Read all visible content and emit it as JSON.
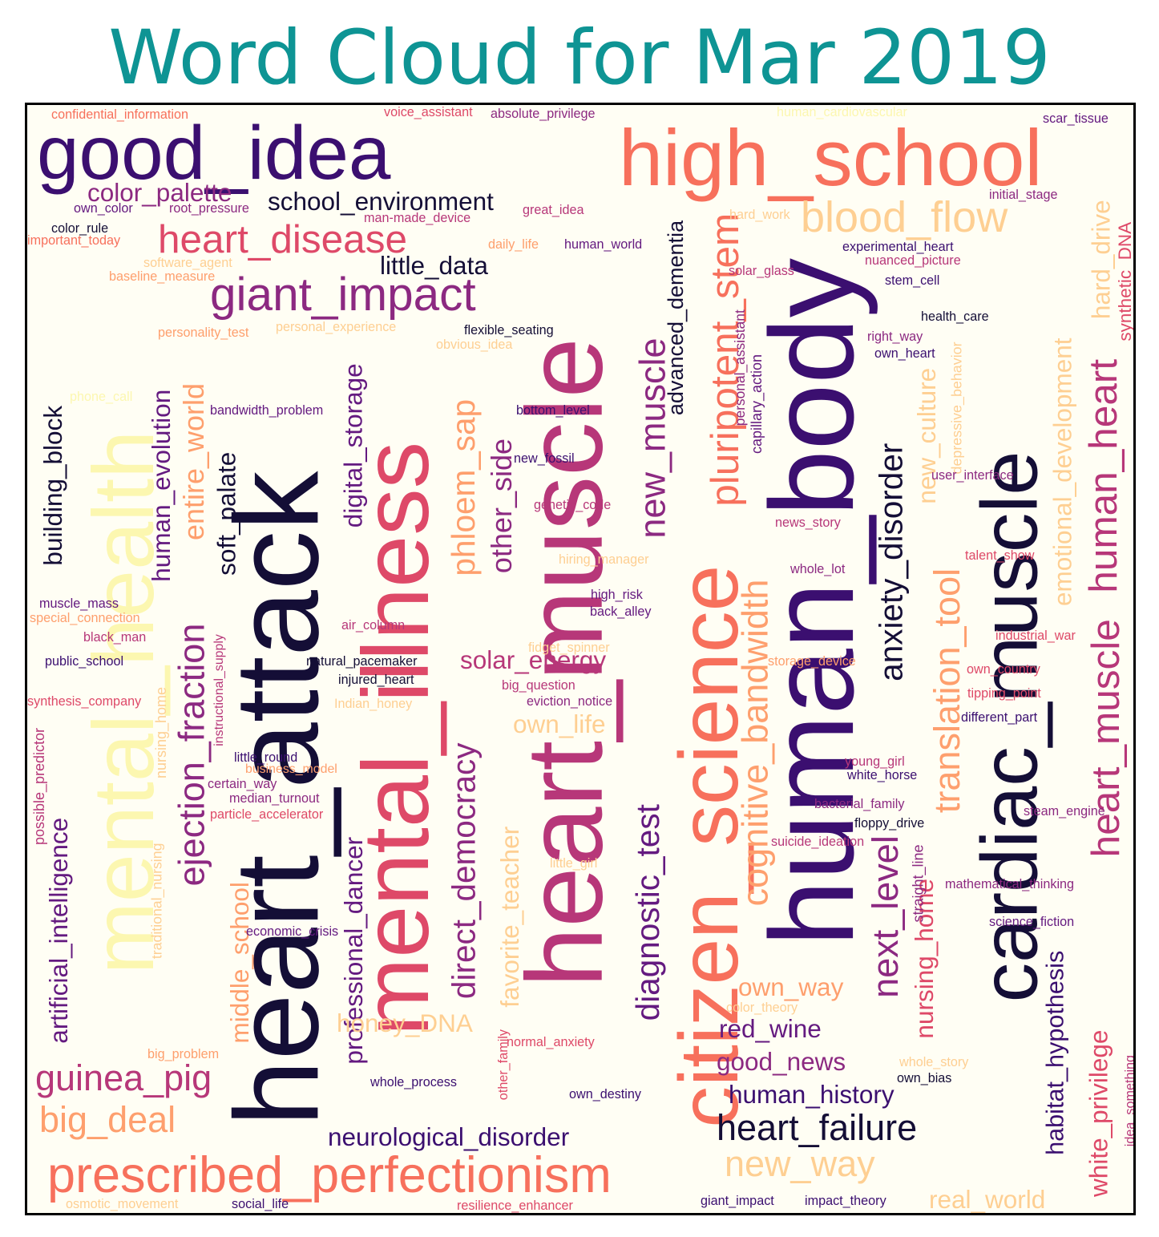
{
  "title": "Word Cloud for Mar 2019",
  "palette": {
    "title": "#0e9494",
    "c0": "#140e36",
    "c1": "#3b0f70",
    "c2": "#641a80",
    "c3": "#8c2981",
    "c4": "#b73779",
    "c5": "#de4968",
    "c6": "#f7705c",
    "c7": "#fe9f6d",
    "c8": "#fecf92",
    "c9": "#fcf7b0"
  },
  "words": [
    {
      "text": "good_idea",
      "color": "#3b0f70"
    },
    {
      "text": "high_school",
      "color": "#f7705c"
    },
    {
      "text": "heart_muscle",
      "color": "#b73779"
    },
    {
      "text": "cardiac_muscle",
      "color": "#140e36"
    },
    {
      "text": "human_body",
      "color": "#3b0f70"
    },
    {
      "text": "heart_attack",
      "color": "#140e36"
    },
    {
      "text": "mental_health",
      "color": "#fcf7b0"
    },
    {
      "text": "mental_illness",
      "color": "#de4968"
    },
    {
      "text": "citizen_science",
      "color": "#f7705c"
    },
    {
      "text": "prescribed_perfectionism",
      "color": "#f7705c"
    },
    {
      "text": "heart_disease",
      "color": "#de4968"
    },
    {
      "text": "giant_impact",
      "color": "#8c2981"
    },
    {
      "text": "blood_flow",
      "color": "#fecf92"
    },
    {
      "text": "human_heart",
      "color": "#b73779"
    },
    {
      "text": "heart_muscle",
      "color": "#b73779"
    },
    {
      "text": "anxiety_disorder",
      "color": "#140e36"
    },
    {
      "text": "cognitive_bandwidth",
      "color": "#fe9f6d"
    },
    {
      "text": "pluripotent_stem",
      "color": "#f7705c"
    },
    {
      "text": "direct_democracy",
      "color": "#8c2981"
    },
    {
      "text": "diagnostic_test",
      "color": "#641a80"
    },
    {
      "text": "ejection_fraction",
      "color": "#8c2981"
    },
    {
      "text": "translation_tool",
      "color": "#fe9f6d"
    },
    {
      "text": "phloem_sap",
      "color": "#fe9f6d"
    },
    {
      "text": "new_muscle",
      "color": "#8c2981"
    },
    {
      "text": "next_level",
      "color": "#8c2981"
    },
    {
      "text": "heart_failure",
      "color": "#140e36"
    },
    {
      "text": "new_way",
      "color": "#fecf92"
    },
    {
      "text": "guinea_pig",
      "color": "#b73779"
    },
    {
      "text": "big_deal",
      "color": "#fe9f6d"
    },
    {
      "text": "entire_world",
      "color": "#fe9f6d"
    },
    {
      "text": "other_side",
      "color": "#8c2981"
    },
    {
      "text": "color_palette",
      "color": "#8c2981"
    },
    {
      "text": "school_environment",
      "color": "#140e36"
    },
    {
      "text": "little_data",
      "color": "#140e36"
    },
    {
      "text": "advanced_dementia",
      "color": "#140e36"
    },
    {
      "text": "solar_energy",
      "color": "#b73779"
    },
    {
      "text": "own_life",
      "color": "#fecf92"
    },
    {
      "text": "human_evolution",
      "color": "#641a80"
    },
    {
      "text": "soft_palate",
      "color": "#140e36"
    },
    {
      "text": "digital_storage",
      "color": "#641a80"
    },
    {
      "text": "building_block",
      "color": "#140e36"
    },
    {
      "text": "artificial_intelligence",
      "color": "#641a80"
    },
    {
      "text": "middle_school",
      "color": "#fe9f6d"
    },
    {
      "text": "professional_dancer",
      "color": "#641a80"
    },
    {
      "text": "favorite_teacher",
      "color": "#fecf92"
    },
    {
      "text": "honey_DNA",
      "color": "#fecf92"
    },
    {
      "text": "neurological_disorder",
      "color": "#3b0f70"
    },
    {
      "text": "own_way",
      "color": "#fe9f6d"
    },
    {
      "text": "red_wine",
      "color": "#641a80"
    },
    {
      "text": "good_news",
      "color": "#8c2981"
    },
    {
      "text": "human_history",
      "color": "#3b0f70"
    },
    {
      "text": "nursing_home",
      "color": "#de4968"
    },
    {
      "text": "habitat_hypothesis",
      "color": "#3b0f70"
    },
    {
      "text": "white_privilege",
      "color": "#de4968"
    },
    {
      "text": "emotional_development",
      "color": "#fecf92"
    },
    {
      "text": "new_culture",
      "color": "#fecf92"
    },
    {
      "text": "hard_drive",
      "color": "#fecf92"
    },
    {
      "text": "real_world",
      "color": "#fecf92"
    },
    {
      "text": "confidential_information",
      "color": "#f7705c"
    },
    {
      "text": "voice_assistant",
      "color": "#de4968"
    },
    {
      "text": "absolute_privilege",
      "color": "#8c2981"
    },
    {
      "text": "human_cardiovascular",
      "color": "#fcf7b0"
    },
    {
      "text": "scar_tissue",
      "color": "#641a80"
    },
    {
      "text": "own_color",
      "color": "#641a80"
    },
    {
      "text": "root_pressure",
      "color": "#8c2981"
    },
    {
      "text": "color_rule",
      "color": "#140e36"
    },
    {
      "text": "important_today",
      "color": "#f7705c"
    },
    {
      "text": "software_agent",
      "color": "#fecf92"
    },
    {
      "text": "baseline_measure",
      "color": "#fe9f6d"
    },
    {
      "text": "personality_test",
      "color": "#fe9f6d"
    },
    {
      "text": "personal_experience",
      "color": "#fecf92"
    },
    {
      "text": "obvious_idea",
      "color": "#fecf92"
    },
    {
      "text": "phone_call",
      "color": "#fcf7b0"
    },
    {
      "text": "bandwidth_problem",
      "color": "#641a80"
    },
    {
      "text": "man-made_device",
      "color": "#b73779"
    },
    {
      "text": "great_idea",
      "color": "#b73779"
    },
    {
      "text": "daily_life",
      "color": "#fe9f6d"
    },
    {
      "text": "human_world",
      "color": "#641a80"
    },
    {
      "text": "flexible_seating",
      "color": "#140e36"
    },
    {
      "text": "bottom_level",
      "color": "#3b0f70"
    },
    {
      "text": "new_fossil",
      "color": "#3b0f70"
    },
    {
      "text": "genetic_code",
      "color": "#b73779"
    },
    {
      "text": "hiring_manager",
      "color": "#fecf92"
    },
    {
      "text": "high_risk",
      "color": "#641a80"
    },
    {
      "text": "back_alley",
      "color": "#641a80"
    },
    {
      "text": "air_column",
      "color": "#b73779"
    },
    {
      "text": "fidget_spinner",
      "color": "#fecf92"
    },
    {
      "text": "natural_pacemaker",
      "color": "#140e36"
    },
    {
      "text": "injured_heart",
      "color": "#140e36"
    },
    {
      "text": "big_question",
      "color": "#b73779"
    },
    {
      "text": "eviction_notice",
      "color": "#8c2981"
    },
    {
      "text": "Indian_honey",
      "color": "#fecf92"
    },
    {
      "text": "hard_work",
      "color": "#fecf92"
    },
    {
      "text": "solar_glass",
      "color": "#b73779"
    },
    {
      "text": "initial_stage",
      "color": "#8c2981"
    },
    {
      "text": "experimental_heart",
      "color": "#3b0f70"
    },
    {
      "text": "nuanced_picture",
      "color": "#b73779"
    },
    {
      "text": "stem_cell",
      "color": "#3b0f70"
    },
    {
      "text": "synthetic_DNA",
      "color": "#de4968"
    },
    {
      "text": "health_care",
      "color": "#140e36"
    },
    {
      "text": "right_way",
      "color": "#8c2981"
    },
    {
      "text": "own_heart",
      "color": "#3b0f70"
    },
    {
      "text": "personal_assistant",
      "color": "#8c2981"
    },
    {
      "text": "capillary_action",
      "color": "#641a80"
    },
    {
      "text": "depressive_behavior",
      "color": "#fecf92"
    },
    {
      "text": "user_interface",
      "color": "#8c2981"
    },
    {
      "text": "news_story",
      "color": "#b73779"
    },
    {
      "text": "talent_show",
      "color": "#de4968"
    },
    {
      "text": "whole_lot",
      "color": "#8c2981"
    },
    {
      "text": "industrial_war",
      "color": "#de4968"
    },
    {
      "text": "storage_device",
      "color": "#fe9f6d"
    },
    {
      "text": "own_country",
      "color": "#de4968"
    },
    {
      "text": "tipping_point",
      "color": "#de4968"
    },
    {
      "text": "different_part",
      "color": "#3b0f70"
    },
    {
      "text": "young_girl",
      "color": "#b73779"
    },
    {
      "text": "white_horse",
      "color": "#3b0f70"
    },
    {
      "text": "bacterial_family",
      "color": "#8c2981"
    },
    {
      "text": "floppy_drive",
      "color": "#140e36"
    },
    {
      "text": "steam_engine",
      "color": "#8c2981"
    },
    {
      "text": "suicide_ideation",
      "color": "#b73779"
    },
    {
      "text": "straight_line",
      "color": "#8c2981"
    },
    {
      "text": "mathematical_thinking",
      "color": "#8c2981"
    },
    {
      "text": "science_fiction",
      "color": "#641a80"
    },
    {
      "text": "whole_story",
      "color": "#fecf92"
    },
    {
      "text": "own_bias",
      "color": "#140e36"
    },
    {
      "text": "idea_something",
      "color": "#b73779"
    },
    {
      "text": "muscle_mass",
      "color": "#641a80"
    },
    {
      "text": "special_connection",
      "color": "#fe9f6d"
    },
    {
      "text": "black_man",
      "color": "#b73779"
    },
    {
      "text": "public_school",
      "color": "#3b0f70"
    },
    {
      "text": "synthesis_company",
      "color": "#de4968"
    },
    {
      "text": "traditional_nursing",
      "color": "#fecf92"
    },
    {
      "text": "nursing_home",
      "color": "#fecf92"
    },
    {
      "text": "instructional_supply",
      "color": "#b73779"
    },
    {
      "text": "possible_predictor",
      "color": "#b73779"
    },
    {
      "text": "little_round",
      "color": "#3b0f70"
    },
    {
      "text": "business_model",
      "color": "#fe9f6d"
    },
    {
      "text": "certain_way",
      "color": "#8c2981"
    },
    {
      "text": "median_turnout",
      "color": "#8c2981"
    },
    {
      "text": "particle_accelerator",
      "color": "#de4968"
    },
    {
      "text": "economic_crisis",
      "color": "#641a80"
    },
    {
      "text": "little_girl",
      "color": "#fecf92"
    },
    {
      "text": "big_problem",
      "color": "#fe9f6d"
    },
    {
      "text": "other_family",
      "color": "#de4968"
    },
    {
      "text": "normal_anxiety",
      "color": "#de4968"
    },
    {
      "text": "whole_process",
      "color": "#3b0f70"
    },
    {
      "text": "own_destiny",
      "color": "#3b0f70"
    },
    {
      "text": "color_theory",
      "color": "#fecf92"
    },
    {
      "text": "osmotic_movement",
      "color": "#fecf92"
    },
    {
      "text": "social_life",
      "color": "#3b0f70"
    },
    {
      "text": "resilience_enhancer",
      "color": "#de4968"
    },
    {
      "text": "giant_impact",
      "color": "#3b0f70"
    },
    {
      "text": "impact_theory",
      "color": "#3b0f70"
    }
  ]
}
